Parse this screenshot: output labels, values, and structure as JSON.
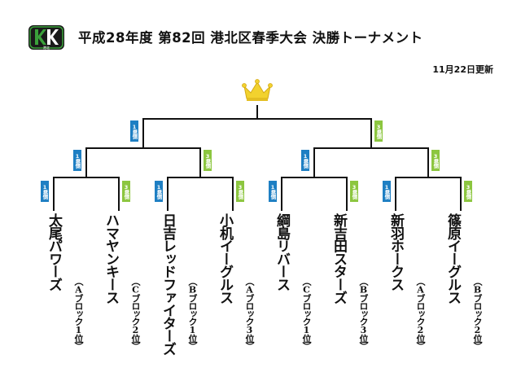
{
  "header": {
    "title": "平成28年度 第82回 港北区春季大会 決勝トーナメント",
    "updated": "11月22日更新"
  },
  "icons": {
    "logo": "kk-shield-logo",
    "crown": "gold-crown-icon",
    "colors": {
      "first_base": "#1e7fc3",
      "third_base": "#8cc63f",
      "crown": "#f2d22e",
      "logo": "#3aa13a"
    }
  },
  "logo_caption": "港北",
  "badges": {
    "first": "1塁側",
    "third": "3塁側"
  },
  "teams": [
    {
      "name": "太尾パワーズ",
      "rank": "（Aブロック1位）"
    },
    {
      "name": "ハマヤンキース",
      "rank": "（Cブロック2位）"
    },
    {
      "name": "日吉レッドファイターズ",
      "rank": "（Bブロック1位）"
    },
    {
      "name": "小机イーグルス",
      "rank": "（Aブロック3位）"
    },
    {
      "name": "綱島リバース",
      "rank": "（Cブロック1位）"
    },
    {
      "name": "新吉田スターズ",
      "rank": "（Bブロック3位）"
    },
    {
      "name": "新羽ホークス",
      "rank": "（Aブロック2位）"
    },
    {
      "name": "篠原イーグルス",
      "rank": "（Bブロック2位）"
    }
  ]
}
